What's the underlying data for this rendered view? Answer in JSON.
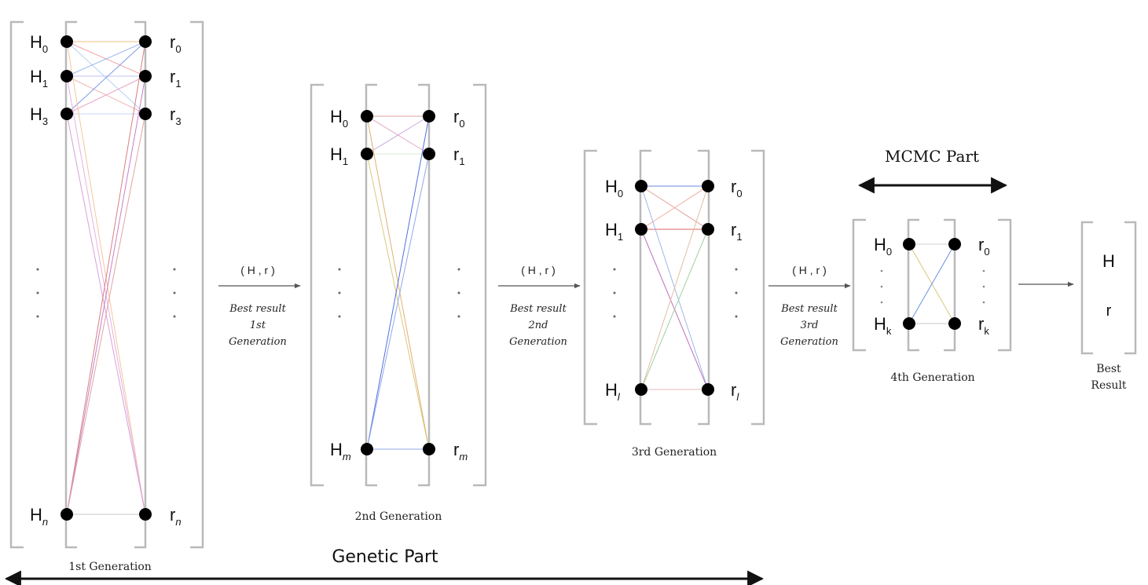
{
  "generations": [
    {
      "caption": "1st Generation",
      "h_labels": [
        {
          "base": "H",
          "sub": "0"
        },
        {
          "base": "H",
          "sub": "1"
        },
        {
          "base": "H",
          "sub": "3"
        },
        {
          "base": "H",
          "sub": "n"
        }
      ],
      "r_labels": [
        {
          "base": "r",
          "sub": "0"
        },
        {
          "base": "r",
          "sub": "1"
        },
        {
          "base": "r",
          "sub": "3"
        },
        {
          "base": "r",
          "sub": "n"
        }
      ]
    },
    {
      "caption": "2nd Generation",
      "h_labels": [
        {
          "base": "H",
          "sub": "0"
        },
        {
          "base": "H",
          "sub": "1"
        },
        {
          "base": "H",
          "sub": "m"
        }
      ],
      "r_labels": [
        {
          "base": "r",
          "sub": "0"
        },
        {
          "base": "r",
          "sub": "1"
        },
        {
          "base": "r",
          "sub": "m"
        }
      ]
    },
    {
      "caption": "3rd Generation",
      "h_labels": [
        {
          "base": "H",
          "sub": "0"
        },
        {
          "base": "H",
          "sub": "1"
        },
        {
          "base": "H",
          "sub": "l"
        }
      ],
      "r_labels": [
        {
          "base": "r",
          "sub": "0"
        },
        {
          "base": "r",
          "sub": "1"
        },
        {
          "base": "r",
          "sub": "l"
        }
      ]
    },
    {
      "caption": "4th Generation",
      "h_labels": [
        {
          "base": "H",
          "sub": "0"
        },
        {
          "base": "H",
          "sub": "k"
        }
      ],
      "r_labels": [
        {
          "base": "r",
          "sub": "0"
        },
        {
          "base": "r",
          "sub": "k"
        }
      ]
    }
  ],
  "transitions": [
    {
      "pair": "( H , r )",
      "lines": [
        "Best result",
        "1st",
        "Generation"
      ]
    },
    {
      "pair": "( H , r )",
      "lines": [
        "Best result",
        "2nd",
        "Generation"
      ]
    },
    {
      "pair": "( H , r )",
      "lines": [
        "Best result",
        "3rd",
        "Generation"
      ]
    }
  ],
  "best_result": {
    "items": [
      "H",
      "r"
    ],
    "caption_lines": [
      "Best",
      "Result"
    ]
  },
  "parts": {
    "genetic": "Genetic Part",
    "mcmc": "MCMC Part"
  },
  "colors": {
    "node": "#000000",
    "bracket": "#b9b9b9",
    "column": "#9a9a9a",
    "arrow": "#111111"
  }
}
